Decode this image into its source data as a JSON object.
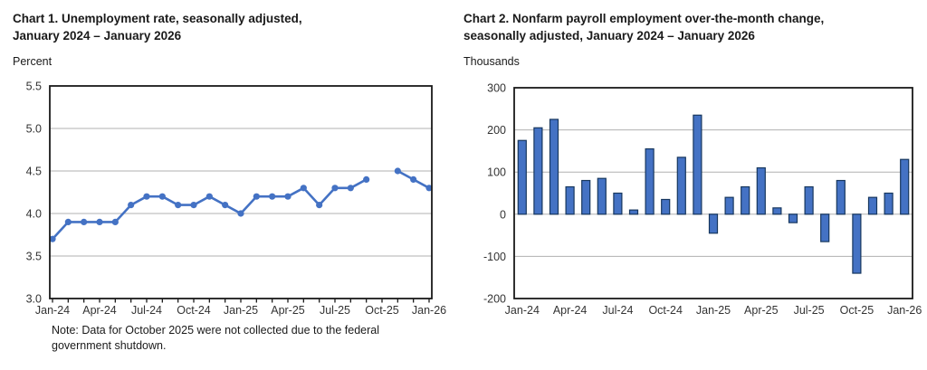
{
  "page": {
    "background": "#ffffff"
  },
  "chart_data": [
    {
      "type": "line",
      "title": "Chart 1. Unemployment rate, seasonally adjusted, January 2024 – January 2026",
      "title_lines": [
        "Chart 1. Unemployment rate, seasonally adjusted,",
        "January 2024 – January 2026"
      ],
      "unit_label": "Percent",
      "note": "Note: Data for October 2025 were not collected due to the federal government shutdown.",
      "categories": [
        "Jan-24",
        "Feb-24",
        "Mar-24",
        "Apr-24",
        "May-24",
        "Jun-24",
        "Jul-24",
        "Aug-24",
        "Sep-24",
        "Oct-24",
        "Nov-24",
        "Dec-24",
        "Jan-25",
        "Feb-25",
        "Mar-25",
        "Apr-25",
        "May-25",
        "Jun-25",
        "Jul-25",
        "Aug-25",
        "Sep-25",
        "Oct-25",
        "Nov-25",
        "Dec-25",
        "Jan-26"
      ],
      "values": [
        3.7,
        3.9,
        3.9,
        3.9,
        3.9,
        4.1,
        4.2,
        4.2,
        4.1,
        4.1,
        4.2,
        4.1,
        4.0,
        4.2,
        4.2,
        4.2,
        4.3,
        4.1,
        4.3,
        4.3,
        4.4,
        null,
        4.5,
        4.4,
        4.3
      ],
      "missing_category": "Oct-25",
      "ylim": [
        3.0,
        5.5
      ],
      "yticks": [
        3.0,
        3.5,
        4.0,
        4.5,
        5.0,
        5.5
      ],
      "ytick_format": "fixed1",
      "xtick_label_indices": [
        0,
        3,
        6,
        9,
        12,
        15,
        18,
        21,
        24
      ],
      "grid": true,
      "legend": "none",
      "line_color": "#4472C4",
      "marker_color": "#4472C4",
      "grid_color": "#b0b0b0",
      "axis_color": "#1a1a1a",
      "tick_text_color": "#333333"
    },
    {
      "type": "bar",
      "title": "Chart 2. Nonfarm payroll employment over-the-month change, seasonally adjusted, January 2024 – January 2026",
      "title_lines": [
        "Chart 2. Nonfarm payroll employment over-the-month change,",
        "seasonally adjusted, January 2024 – January 2026"
      ],
      "unit_label": "Thousands",
      "categories": [
        "Jan-24",
        "Feb-24",
        "Mar-24",
        "Apr-24",
        "May-24",
        "Jun-24",
        "Jul-24",
        "Aug-24",
        "Sep-24",
        "Oct-24",
        "Nov-24",
        "Dec-24",
        "Jan-25",
        "Feb-25",
        "Mar-25",
        "Apr-25",
        "May-25",
        "Jun-25",
        "Jul-25",
        "Aug-25",
        "Sep-25",
        "Oct-25",
        "Nov-25",
        "Dec-25",
        "Jan-26"
      ],
      "values": [
        175,
        205,
        225,
        65,
        80,
        85,
        50,
        10,
        155,
        35,
        135,
        235,
        -45,
        40,
        65,
        110,
        15,
        -20,
        65,
        -65,
        80,
        -140,
        40,
        50,
        130
      ],
      "ylim": [
        -200,
        300
      ],
      "yticks": [
        -200,
        -100,
        0,
        100,
        200,
        300
      ],
      "ytick_format": "int",
      "xtick_label_indices": [
        0,
        3,
        6,
        9,
        12,
        15,
        18,
        21,
        24
      ],
      "grid": true,
      "legend": "none",
      "bar_color": "#4472C4",
      "bar_border_color": "#17375E",
      "grid_color": "#b0b0b0",
      "axis_color": "#1a1a1a",
      "tick_text_color": "#333333"
    }
  ]
}
